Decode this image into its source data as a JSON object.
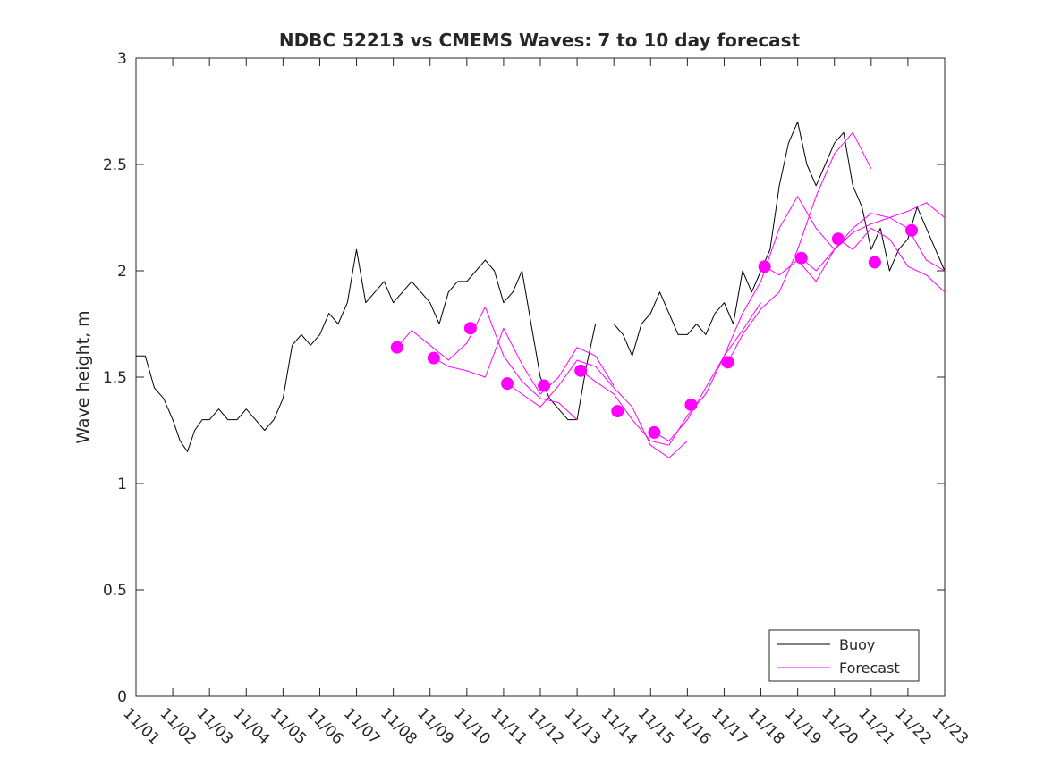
{
  "chart_data": {
    "type": "line",
    "title": "NDBC 52213 vs CMEMS Waves: 7 to 10 day forecast",
    "xlabel": "",
    "ylabel": "Wave height, m",
    "ylim": [
      0,
      3
    ],
    "xlim": [
      0,
      22
    ],
    "yticks": [
      0,
      0.5,
      1,
      1.5,
      2,
      2.5,
      3
    ],
    "yticklabels": [
      "0",
      "0.5",
      "1",
      "1.5",
      "2",
      "2.5",
      "3"
    ],
    "xtick_labels": [
      "11/01",
      "11/02",
      "11/03",
      "11/04",
      "11/05",
      "11/06",
      "11/07",
      "11/08",
      "11/09",
      "11/10",
      "11/11",
      "11/12",
      "11/13",
      "11/14",
      "11/15",
      "11/16",
      "11/17",
      "11/18",
      "11/19",
      "11/20",
      "11/21",
      "11/22",
      "11/23"
    ],
    "legend": {
      "position": "bottom-right",
      "entries": [
        "Buoy",
        "Forecast"
      ]
    },
    "colors": {
      "buoy": "#000000",
      "forecast": "#ff00ff"
    },
    "series": [
      {
        "name": "Buoy",
        "x": [
          0,
          0.25,
          0.5,
          0.75,
          1.0,
          1.2,
          1.4,
          1.6,
          1.8,
          2.0,
          2.25,
          2.5,
          2.75,
          3.0,
          3.25,
          3.5,
          3.75,
          4.0,
          4.25,
          4.5,
          4.75,
          5.0,
          5.25,
          5.5,
          5.75,
          6.0,
          6.25,
          6.5,
          6.75,
          7.0,
          7.25,
          7.5,
          7.75,
          8.0,
          8.25,
          8.5,
          8.75,
          9.0,
          9.25,
          9.5,
          9.75,
          10.0,
          10.25,
          10.5,
          10.75,
          11.0,
          11.25,
          11.5,
          11.75,
          12.0,
          12.25,
          12.5,
          12.75,
          13.0,
          13.25,
          13.5,
          13.75,
          14.0,
          14.25,
          14.5,
          14.75,
          15.0,
          15.25,
          15.5,
          15.75,
          16.0,
          16.25,
          16.5,
          16.75,
          17.0,
          17.25,
          17.5,
          17.75,
          18.0,
          18.25,
          18.5,
          18.75,
          19.0,
          19.25,
          19.5,
          19.75,
          20.0,
          20.25,
          20.5,
          20.75,
          21.0,
          21.25,
          21.5,
          21.75,
          22.0
        ],
        "y": [
          1.6,
          1.6,
          1.45,
          1.4,
          1.3,
          1.2,
          1.15,
          1.25,
          1.3,
          1.3,
          1.35,
          1.3,
          1.3,
          1.35,
          1.3,
          1.25,
          1.3,
          1.4,
          1.65,
          1.7,
          1.65,
          1.7,
          1.8,
          1.75,
          1.85,
          2.1,
          1.85,
          1.9,
          1.95,
          1.85,
          1.9,
          1.95,
          1.9,
          1.85,
          1.75,
          1.9,
          1.95,
          1.95,
          2.0,
          2.05,
          2.0,
          1.85,
          1.9,
          2.0,
          1.75,
          1.5,
          1.4,
          1.35,
          1.3,
          1.3,
          1.55,
          1.75,
          1.75,
          1.75,
          1.7,
          1.6,
          1.75,
          1.8,
          1.9,
          1.8,
          1.7,
          1.7,
          1.75,
          1.7,
          1.8,
          1.85,
          1.75,
          2.0,
          1.9,
          2.0,
          2.1,
          2.4,
          2.6,
          2.7,
          2.5,
          2.4,
          2.5,
          2.6,
          2.65,
          2.4,
          2.3,
          2.1,
          2.2,
          2.0,
          2.1,
          2.15,
          2.3,
          2.2,
          2.1,
          2.0
        ]
      },
      {
        "name": "Forecast",
        "x": [
          7.1,
          7.5,
          8.0,
          8.5,
          9.0,
          9.5,
          10.0,
          10.5,
          11.0,
          11.5,
          12.0
        ],
        "y": [
          1.64,
          1.72,
          1.65,
          1.58,
          1.66,
          1.83,
          1.6,
          1.48,
          1.4,
          1.38,
          1.3
        ]
      },
      {
        "name": "Forecast",
        "x": [
          8.1,
          8.5,
          9.0,
          9.5,
          10.0,
          10.5,
          11.0,
          11.5,
          12.0,
          12.5,
          13.0
        ],
        "y": [
          1.59,
          1.55,
          1.53,
          1.5,
          1.73,
          1.56,
          1.42,
          1.5,
          1.64,
          1.6,
          1.46
        ]
      },
      {
        "name": "Forecast",
        "x": [
          10.1,
          10.5,
          11.0,
          11.5,
          12.0,
          12.5,
          13.0,
          13.5,
          14.0,
          14.5,
          15.0
        ],
        "y": [
          1.47,
          1.42,
          1.36,
          1.46,
          1.58,
          1.55,
          1.45,
          1.36,
          1.18,
          1.12,
          1.2
        ]
      },
      {
        "name": "Forecast",
        "x": [
          12.1,
          12.5,
          13.0,
          13.5,
          14.0,
          14.5,
          15.0,
          15.5,
          16.0,
          16.5,
          17.0
        ],
        "y": [
          1.53,
          1.48,
          1.42,
          1.3,
          1.2,
          1.18,
          1.32,
          1.42,
          1.6,
          1.72,
          1.85
        ]
      },
      {
        "name": "Forecast",
        "x": [
          14.1,
          14.5,
          15.0,
          15.5,
          16.0,
          16.5,
          17.0,
          17.5,
          18.0,
          18.5,
          19.0
        ],
        "y": [
          1.24,
          1.2,
          1.3,
          1.45,
          1.6,
          1.8,
          1.95,
          2.2,
          2.35,
          2.2,
          2.1
        ]
      },
      {
        "name": "Forecast",
        "x": [
          16.1,
          16.5,
          17.0,
          17.5,
          18.0,
          18.5,
          19.0,
          19.5,
          20.0
        ],
        "y": [
          1.57,
          1.7,
          1.82,
          1.9,
          2.1,
          2.35,
          2.55,
          2.65,
          2.48
        ]
      },
      {
        "name": "Forecast",
        "x": [
          17.1,
          17.5,
          18.0,
          18.5,
          19.0,
          19.5,
          20.0,
          20.5,
          21.0,
          21.5,
          22.0
        ],
        "y": [
          2.02,
          1.98,
          2.05,
          1.95,
          2.1,
          2.2,
          2.27,
          2.25,
          2.28,
          2.32,
          2.25
        ]
      },
      {
        "name": "Forecast",
        "x": [
          18.1,
          18.5,
          19.0,
          19.5,
          20.0,
          20.5,
          21.0,
          21.5,
          22.0
        ],
        "y": [
          2.06,
          2.0,
          2.1,
          2.18,
          2.22,
          2.25,
          2.2,
          2.05,
          2.0
        ]
      },
      {
        "name": "Forecast",
        "x": [
          19.1,
          19.5,
          20.0,
          20.5,
          21.0,
          21.5,
          22.0
        ],
        "y": [
          2.15,
          2.1,
          2.2,
          2.15,
          2.02,
          1.98,
          1.9
        ]
      }
    ],
    "forecast_markers": {
      "x": [
        7.1,
        8.1,
        9.1,
        10.1,
        11.1,
        12.1,
        13.1,
        14.1,
        15.1,
        16.1,
        17.1,
        18.1,
        19.1,
        20.1,
        21.1
      ],
      "y": [
        1.64,
        1.59,
        1.73,
        1.47,
        1.46,
        1.53,
        1.34,
        1.24,
        1.37,
        1.57,
        2.02,
        2.06,
        2.15,
        2.04,
        2.19
      ]
    }
  }
}
